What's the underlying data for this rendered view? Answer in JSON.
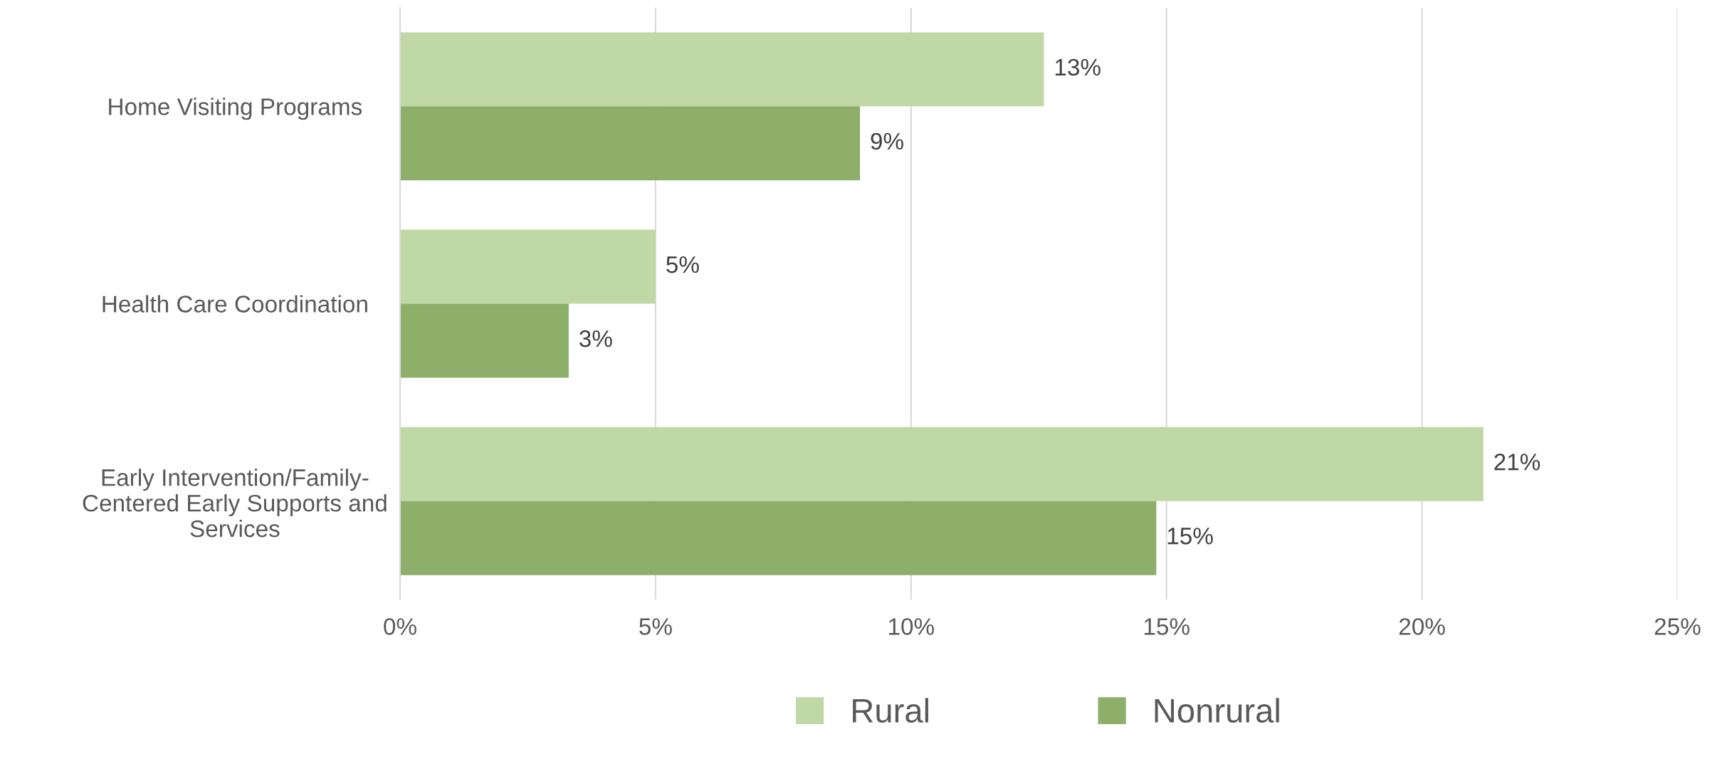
{
  "chart_data": {
    "type": "bar",
    "orientation": "horizontal",
    "categories": [
      "Home Visiting Programs",
      "Health Care Coordination",
      "Early Intervention/Family-\nCentered Early Supports and\nServices"
    ],
    "series": [
      {
        "name": "Rural",
        "color": "#bfd8a5",
        "values": [
          12.6,
          5.0,
          21.2
        ],
        "value_labels": [
          "13%",
          "5%",
          "21%"
        ]
      },
      {
        "name": "Nonrural",
        "color": "#8daf69",
        "values": [
          9.0,
          3.3,
          14.8
        ],
        "value_labels": [
          "9%",
          "3%",
          "15%"
        ]
      }
    ],
    "xlim": [
      0,
      25
    ],
    "xticks": [
      {
        "value": 0,
        "label": "0%"
      },
      {
        "value": 5,
        "label": "5%"
      },
      {
        "value": 10,
        "label": "10%"
      },
      {
        "value": 15,
        "label": "15%"
      },
      {
        "value": 20,
        "label": "20%"
      },
      {
        "value": 25,
        "label": "25%"
      }
    ],
    "grid": "x",
    "legend": "bottom"
  }
}
